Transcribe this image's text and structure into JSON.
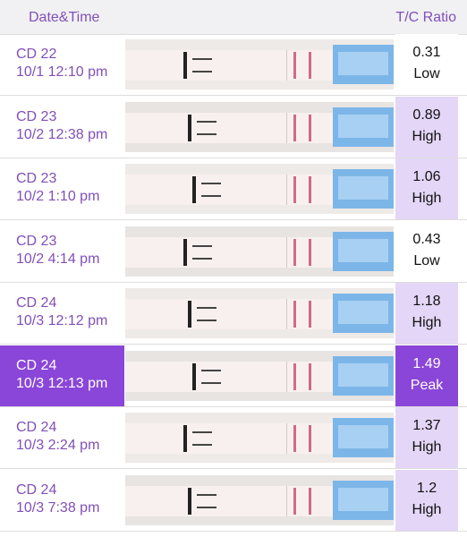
{
  "header": {
    "date_label": "Date&Time",
    "ratio_label": "T/C Ratio"
  },
  "rows": [
    {
      "day": "CD 22",
      "time": "10/1 12:10 pm",
      "ratio": 0.31,
      "level": "Low",
      "ratio_color": "#ffffff",
      "selected": false
    },
    {
      "day": "CD 23",
      "time": "10/2 12:38 pm",
      "ratio": 0.89,
      "level": "High",
      "ratio_color": "#e3d6f7",
      "selected": false
    },
    {
      "day": "CD 23",
      "time": "10/2 1:10 pm",
      "ratio": 1.06,
      "level": "High",
      "ratio_color": "#e3d6f7",
      "selected": false
    },
    {
      "day": "CD 23",
      "time": "10/2 4:14 pm",
      "ratio": 0.43,
      "level": "Low",
      "ratio_color": "#ffffff",
      "selected": false
    },
    {
      "day": "CD 24",
      "time": "10/3 12:12 pm",
      "ratio": 1.18,
      "level": "High",
      "ratio_color": "#e3d6f7",
      "selected": false
    },
    {
      "day": "CD 24",
      "time": "10/3 12:13 pm",
      "ratio": 1.49,
      "level": "Peak",
      "ratio_color": "#8a46d8",
      "selected": true
    },
    {
      "day": "CD 24",
      "time": "10/3 2:24 pm",
      "ratio": 1.37,
      "level": "High",
      "ratio_color": "#e3d6f7",
      "selected": false
    },
    {
      "day": "CD 24",
      "time": "10/3 7:38 pm",
      "ratio": 1.2,
      "level": "High",
      "ratio_color": "#e3d6f7",
      "selected": false
    }
  ]
}
